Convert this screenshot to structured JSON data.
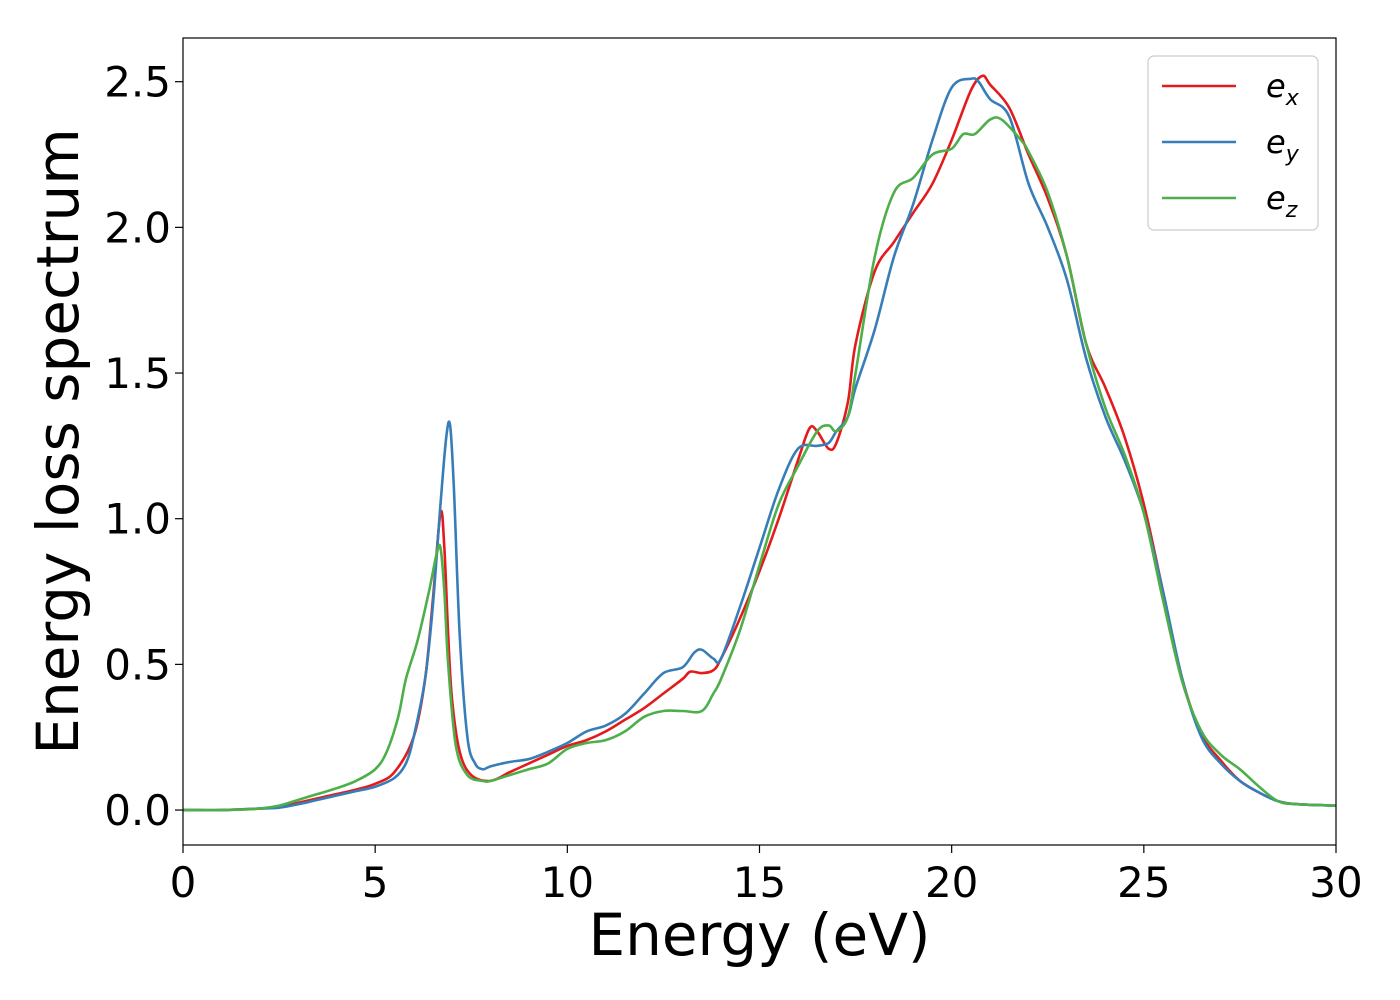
{
  "chart_data": {
    "type": "line",
    "title": "",
    "xlabel": "Energy (eV)",
    "ylabel": "Energy loss spectrum",
    "xlim": [
      0,
      30
    ],
    "ylim": [
      -0.12,
      2.65
    ],
    "xticks": [
      0,
      5,
      10,
      15,
      20,
      25,
      30
    ],
    "xtick_labels": [
      "0",
      "5",
      "10",
      "15",
      "20",
      "25",
      "30"
    ],
    "yticks": [
      0.0,
      0.5,
      1.0,
      1.5,
      2.0,
      2.5
    ],
    "ytick_labels": [
      "0.0",
      "0.5",
      "1.0",
      "1.5",
      "2.0",
      "2.5"
    ],
    "grid": false,
    "legend_position": "top-right",
    "series": [
      {
        "name": "e_x",
        "legend_base": "e",
        "legend_sub": "x",
        "color": "#e41a1c",
        "points": [
          [
            0,
            0.0
          ],
          [
            1,
            0.0
          ],
          [
            2,
            0.005
          ],
          [
            2.5,
            0.01
          ],
          [
            3,
            0.025
          ],
          [
            3.5,
            0.04
          ],
          [
            4,
            0.055
          ],
          [
            4.5,
            0.07
          ],
          [
            5,
            0.09
          ],
          [
            5.5,
            0.13
          ],
          [
            6,
            0.25
          ],
          [
            6.3,
            0.45
          ],
          [
            6.5,
            0.72
          ],
          [
            6.7,
            1.02
          ],
          [
            6.8,
            0.9
          ],
          [
            6.9,
            0.6
          ],
          [
            7.0,
            0.38
          ],
          [
            7.2,
            0.2
          ],
          [
            7.5,
            0.12
          ],
          [
            8,
            0.1
          ],
          [
            8.5,
            0.13
          ],
          [
            9,
            0.16
          ],
          [
            9.5,
            0.19
          ],
          [
            10,
            0.22
          ],
          [
            10.5,
            0.24
          ],
          [
            11,
            0.27
          ],
          [
            11.5,
            0.31
          ],
          [
            12,
            0.35
          ],
          [
            12.5,
            0.4
          ],
          [
            13,
            0.45
          ],
          [
            13.2,
            0.475
          ],
          [
            13.5,
            0.47
          ],
          [
            13.8,
            0.48
          ],
          [
            14,
            0.52
          ],
          [
            14.5,
            0.66
          ],
          [
            15,
            0.82
          ],
          [
            15.5,
            1.0
          ],
          [
            16,
            1.2
          ],
          [
            16.3,
            1.31
          ],
          [
            16.5,
            1.3
          ],
          [
            16.8,
            1.24
          ],
          [
            17,
            1.26
          ],
          [
            17.3,
            1.4
          ],
          [
            17.5,
            1.6
          ],
          [
            18,
            1.85
          ],
          [
            18.5,
            1.95
          ],
          [
            19,
            2.05
          ],
          [
            19.5,
            2.15
          ],
          [
            20,
            2.3
          ],
          [
            20.5,
            2.47
          ],
          [
            20.8,
            2.52
          ],
          [
            21,
            2.49
          ],
          [
            21.5,
            2.41
          ],
          [
            22,
            2.25
          ],
          [
            22.5,
            2.1
          ],
          [
            23,
            1.9
          ],
          [
            23.5,
            1.6
          ],
          [
            24,
            1.45
          ],
          [
            24.5,
            1.28
          ],
          [
            25,
            1.05
          ],
          [
            25.5,
            0.75
          ],
          [
            26,
            0.45
          ],
          [
            26.5,
            0.26
          ],
          [
            27,
            0.17
          ],
          [
            27.5,
            0.1
          ],
          [
            28,
            0.06
          ],
          [
            28.5,
            0.03
          ],
          [
            29,
            0.02
          ],
          [
            30,
            0.015
          ]
        ]
      },
      {
        "name": "e_y",
        "legend_base": "e",
        "legend_sub": "y",
        "color": "#377eb8",
        "points": [
          [
            0,
            0.0
          ],
          [
            1,
            0.0
          ],
          [
            2,
            0.005
          ],
          [
            2.5,
            0.008
          ],
          [
            3,
            0.02
          ],
          [
            3.5,
            0.035
          ],
          [
            4,
            0.05
          ],
          [
            4.5,
            0.065
          ],
          [
            5,
            0.08
          ],
          [
            5.5,
            0.11
          ],
          [
            5.8,
            0.16
          ],
          [
            6.0,
            0.25
          ],
          [
            6.3,
            0.45
          ],
          [
            6.5,
            0.7
          ],
          [
            6.7,
            1.05
          ],
          [
            6.85,
            1.28
          ],
          [
            6.95,
            1.32
          ],
          [
            7.05,
            1.1
          ],
          [
            7.2,
            0.6
          ],
          [
            7.4,
            0.25
          ],
          [
            7.6,
            0.16
          ],
          [
            7.8,
            0.14
          ],
          [
            8,
            0.15
          ],
          [
            8.5,
            0.165
          ],
          [
            9,
            0.175
          ],
          [
            9.5,
            0.2
          ],
          [
            10,
            0.23
          ],
          [
            10.5,
            0.27
          ],
          [
            11,
            0.29
          ],
          [
            11.5,
            0.33
          ],
          [
            12,
            0.4
          ],
          [
            12.5,
            0.47
          ],
          [
            13,
            0.49
          ],
          [
            13.3,
            0.54
          ],
          [
            13.5,
            0.55
          ],
          [
            13.8,
            0.52
          ],
          [
            14,
            0.52
          ],
          [
            14.5,
            0.7
          ],
          [
            15,
            0.9
          ],
          [
            15.5,
            1.1
          ],
          [
            16,
            1.24
          ],
          [
            16.5,
            1.25
          ],
          [
            16.8,
            1.26
          ],
          [
            17,
            1.3
          ],
          [
            17.3,
            1.35
          ],
          [
            17.5,
            1.45
          ],
          [
            18,
            1.65
          ],
          [
            18.5,
            1.9
          ],
          [
            19,
            2.08
          ],
          [
            19.5,
            2.3
          ],
          [
            20,
            2.48
          ],
          [
            20.5,
            2.51
          ],
          [
            20.7,
            2.5
          ],
          [
            21,
            2.44
          ],
          [
            21.5,
            2.38
          ],
          [
            22,
            2.15
          ],
          [
            22.5,
            2.0
          ],
          [
            23,
            1.82
          ],
          [
            23.5,
            1.55
          ],
          [
            24,
            1.35
          ],
          [
            24.5,
            1.2
          ],
          [
            25,
            1.02
          ],
          [
            25.5,
            0.75
          ],
          [
            26,
            0.45
          ],
          [
            26.5,
            0.25
          ],
          [
            27,
            0.16
          ],
          [
            27.5,
            0.1
          ],
          [
            28,
            0.06
          ],
          [
            28.5,
            0.03
          ],
          [
            29,
            0.02
          ],
          [
            30,
            0.015
          ]
        ]
      },
      {
        "name": "e_z",
        "legend_base": "e",
        "legend_sub": "z",
        "color": "#4daf4a",
        "points": [
          [
            0,
            0.0
          ],
          [
            1,
            0.0
          ],
          [
            2,
            0.005
          ],
          [
            2.5,
            0.015
          ],
          [
            3,
            0.035
          ],
          [
            3.5,
            0.055
          ],
          [
            4,
            0.075
          ],
          [
            4.5,
            0.1
          ],
          [
            5,
            0.14
          ],
          [
            5.3,
            0.2
          ],
          [
            5.6,
            0.32
          ],
          [
            5.8,
            0.45
          ],
          [
            6.1,
            0.58
          ],
          [
            6.4,
            0.75
          ],
          [
            6.6,
            0.88
          ],
          [
            6.7,
            0.9
          ],
          [
            6.8,
            0.75
          ],
          [
            6.9,
            0.5
          ],
          [
            7.1,
            0.22
          ],
          [
            7.4,
            0.12
          ],
          [
            7.8,
            0.1
          ],
          [
            8,
            0.1
          ],
          [
            8.5,
            0.12
          ],
          [
            9,
            0.14
          ],
          [
            9.5,
            0.16
          ],
          [
            10,
            0.21
          ],
          [
            10.5,
            0.23
          ],
          [
            11,
            0.24
          ],
          [
            11.5,
            0.27
          ],
          [
            12,
            0.32
          ],
          [
            12.5,
            0.34
          ],
          [
            13,
            0.34
          ],
          [
            13.5,
            0.34
          ],
          [
            13.8,
            0.4
          ],
          [
            14,
            0.45
          ],
          [
            14.5,
            0.62
          ],
          [
            15,
            0.84
          ],
          [
            15.5,
            1.05
          ],
          [
            16,
            1.18
          ],
          [
            16.5,
            1.3
          ],
          [
            16.8,
            1.32
          ],
          [
            17,
            1.3
          ],
          [
            17.3,
            1.35
          ],
          [
            17.5,
            1.5
          ],
          [
            18,
            1.9
          ],
          [
            18.5,
            2.12
          ],
          [
            19,
            2.17
          ],
          [
            19.5,
            2.25
          ],
          [
            20,
            2.27
          ],
          [
            20.3,
            2.32
          ],
          [
            20.6,
            2.32
          ],
          [
            21,
            2.37
          ],
          [
            21.3,
            2.37
          ],
          [
            21.8,
            2.3
          ],
          [
            22,
            2.26
          ],
          [
            22.5,
            2.12
          ],
          [
            23,
            1.9
          ],
          [
            23.5,
            1.6
          ],
          [
            24,
            1.38
          ],
          [
            24.5,
            1.22
          ],
          [
            25,
            1.02
          ],
          [
            25.5,
            0.72
          ],
          [
            26,
            0.44
          ],
          [
            26.5,
            0.27
          ],
          [
            27,
            0.19
          ],
          [
            27.5,
            0.14
          ],
          [
            28,
            0.08
          ],
          [
            28.5,
            0.03
          ],
          [
            29,
            0.02
          ],
          [
            30,
            0.015
          ]
        ]
      }
    ]
  }
}
